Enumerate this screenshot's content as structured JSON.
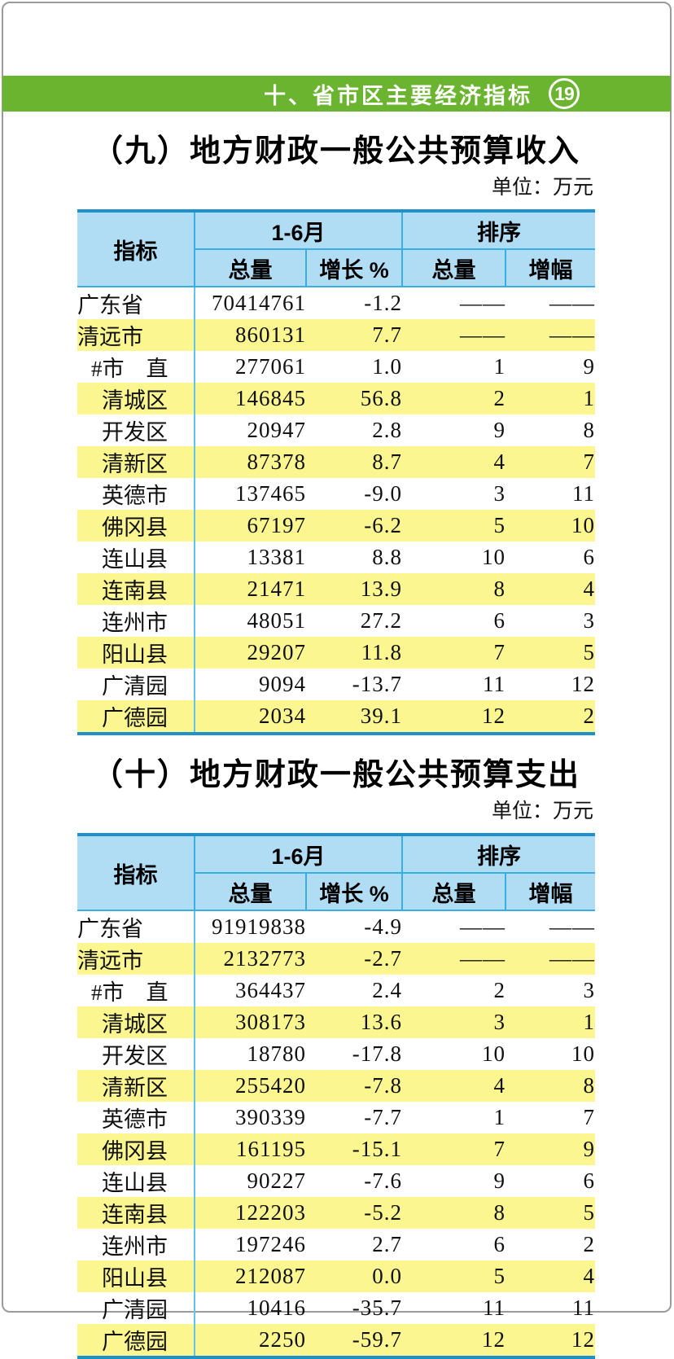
{
  "page": {
    "section_title": "十、省市区主要经济指标",
    "page_number": "19"
  },
  "tables": [
    {
      "title": "（九）地方财政一般公共预算收入",
      "unit": "单位：万元",
      "headers": {
        "indicator": "指标",
        "period_group": "1-6月",
        "rank_group": "排序",
        "total": "总量",
        "growth": "增长 %",
        "rank_total": "总量",
        "rank_growth": "增幅"
      },
      "rows": [
        {
          "name": "广东省",
          "indent": 0,
          "total": "70414761",
          "growth": "-1.2",
          "rank_total": "——",
          "rank_growth": "——"
        },
        {
          "name": "清远市",
          "indent": 0,
          "total": "860131",
          "growth": "7.7",
          "rank_total": "——",
          "rank_growth": "——"
        },
        {
          "name": "#市　直",
          "indent": 1,
          "total": "277061",
          "growth": "1.0",
          "rank_total": "1",
          "rank_growth": "9"
        },
        {
          "name": "清城区",
          "indent": 2,
          "total": "146845",
          "growth": "56.8",
          "rank_total": "2",
          "rank_growth": "1"
        },
        {
          "name": "开发区",
          "indent": 2,
          "total": "20947",
          "growth": "2.8",
          "rank_total": "9",
          "rank_growth": "8"
        },
        {
          "name": "清新区",
          "indent": 2,
          "total": "87378",
          "growth": "8.7",
          "rank_total": "4",
          "rank_growth": "7"
        },
        {
          "name": "英德市",
          "indent": 2,
          "total": "137465",
          "growth": "-9.0",
          "rank_total": "3",
          "rank_growth": "11"
        },
        {
          "name": "佛冈县",
          "indent": 2,
          "total": "67197",
          "growth": "-6.2",
          "rank_total": "5",
          "rank_growth": "10"
        },
        {
          "name": "连山县",
          "indent": 2,
          "total": "13381",
          "growth": "8.8",
          "rank_total": "10",
          "rank_growth": "6"
        },
        {
          "name": "连南县",
          "indent": 2,
          "total": "21471",
          "growth": "13.9",
          "rank_total": "8",
          "rank_growth": "4"
        },
        {
          "name": "连州市",
          "indent": 2,
          "total": "48051",
          "growth": "27.2",
          "rank_total": "6",
          "rank_growth": "3"
        },
        {
          "name": "阳山县",
          "indent": 2,
          "total": "29207",
          "growth": "11.8",
          "rank_total": "7",
          "rank_growth": "5"
        },
        {
          "name": "广清园",
          "indent": 2,
          "total": "9094",
          "growth": "-13.7",
          "rank_total": "11",
          "rank_growth": "12"
        },
        {
          "name": "广德园",
          "indent": 2,
          "total": "2034",
          "growth": "39.1",
          "rank_total": "12",
          "rank_growth": "2"
        }
      ]
    },
    {
      "title": "（十）地方财政一般公共预算支出",
      "unit": "单位：万元",
      "headers": {
        "indicator": "指标",
        "period_group": "1-6月",
        "rank_group": "排序",
        "total": "总量",
        "growth": "增长 %",
        "rank_total": "总量",
        "rank_growth": "增幅"
      },
      "rows": [
        {
          "name": "广东省",
          "indent": 0,
          "total": "91919838",
          "growth": "-4.9",
          "rank_total": "——",
          "rank_growth": "——"
        },
        {
          "name": "清远市",
          "indent": 0,
          "total": "2132773",
          "growth": "-2.7",
          "rank_total": "——",
          "rank_growth": "——"
        },
        {
          "name": "#市　直",
          "indent": 1,
          "total": "364437",
          "growth": "2.4",
          "rank_total": "2",
          "rank_growth": "3"
        },
        {
          "name": "清城区",
          "indent": 2,
          "total": "308173",
          "growth": "13.6",
          "rank_total": "3",
          "rank_growth": "1"
        },
        {
          "name": "开发区",
          "indent": 2,
          "total": "18780",
          "growth": "-17.8",
          "rank_total": "10",
          "rank_growth": "10"
        },
        {
          "name": "清新区",
          "indent": 2,
          "total": "255420",
          "growth": "-7.8",
          "rank_total": "4",
          "rank_growth": "8"
        },
        {
          "name": "英德市",
          "indent": 2,
          "total": "390339",
          "growth": "-7.7",
          "rank_total": "1",
          "rank_growth": "7"
        },
        {
          "name": "佛冈县",
          "indent": 2,
          "total": "161195",
          "growth": "-15.1",
          "rank_total": "7",
          "rank_growth": "9"
        },
        {
          "name": "连山县",
          "indent": 2,
          "total": "90227",
          "growth": "-7.6",
          "rank_total": "9",
          "rank_growth": "6"
        },
        {
          "name": "连南县",
          "indent": 2,
          "total": "122203",
          "growth": "-5.2",
          "rank_total": "8",
          "rank_growth": "5"
        },
        {
          "name": "连州市",
          "indent": 2,
          "total": "197246",
          "growth": "2.7",
          "rank_total": "6",
          "rank_growth": "2"
        },
        {
          "name": "阳山县",
          "indent": 2,
          "total": "212087",
          "growth": "0.0",
          "rank_total": "5",
          "rank_growth": "4"
        },
        {
          "name": "广清园",
          "indent": 2,
          "total": "10416",
          "growth": "-35.7",
          "rank_total": "11",
          "rank_growth": "11"
        },
        {
          "name": "广德园",
          "indent": 2,
          "total": "2250",
          "growth": "-59.7",
          "rank_total": "12",
          "rank_growth": "12"
        }
      ]
    }
  ],
  "colors": {
    "bar_green": "#6ab42f",
    "header_blue_fill": "#b0ddf3",
    "table_border_blue": "#1e90cc",
    "grid_cyan": "#3aaee2",
    "stripe_yellow": "#fbf690"
  }
}
